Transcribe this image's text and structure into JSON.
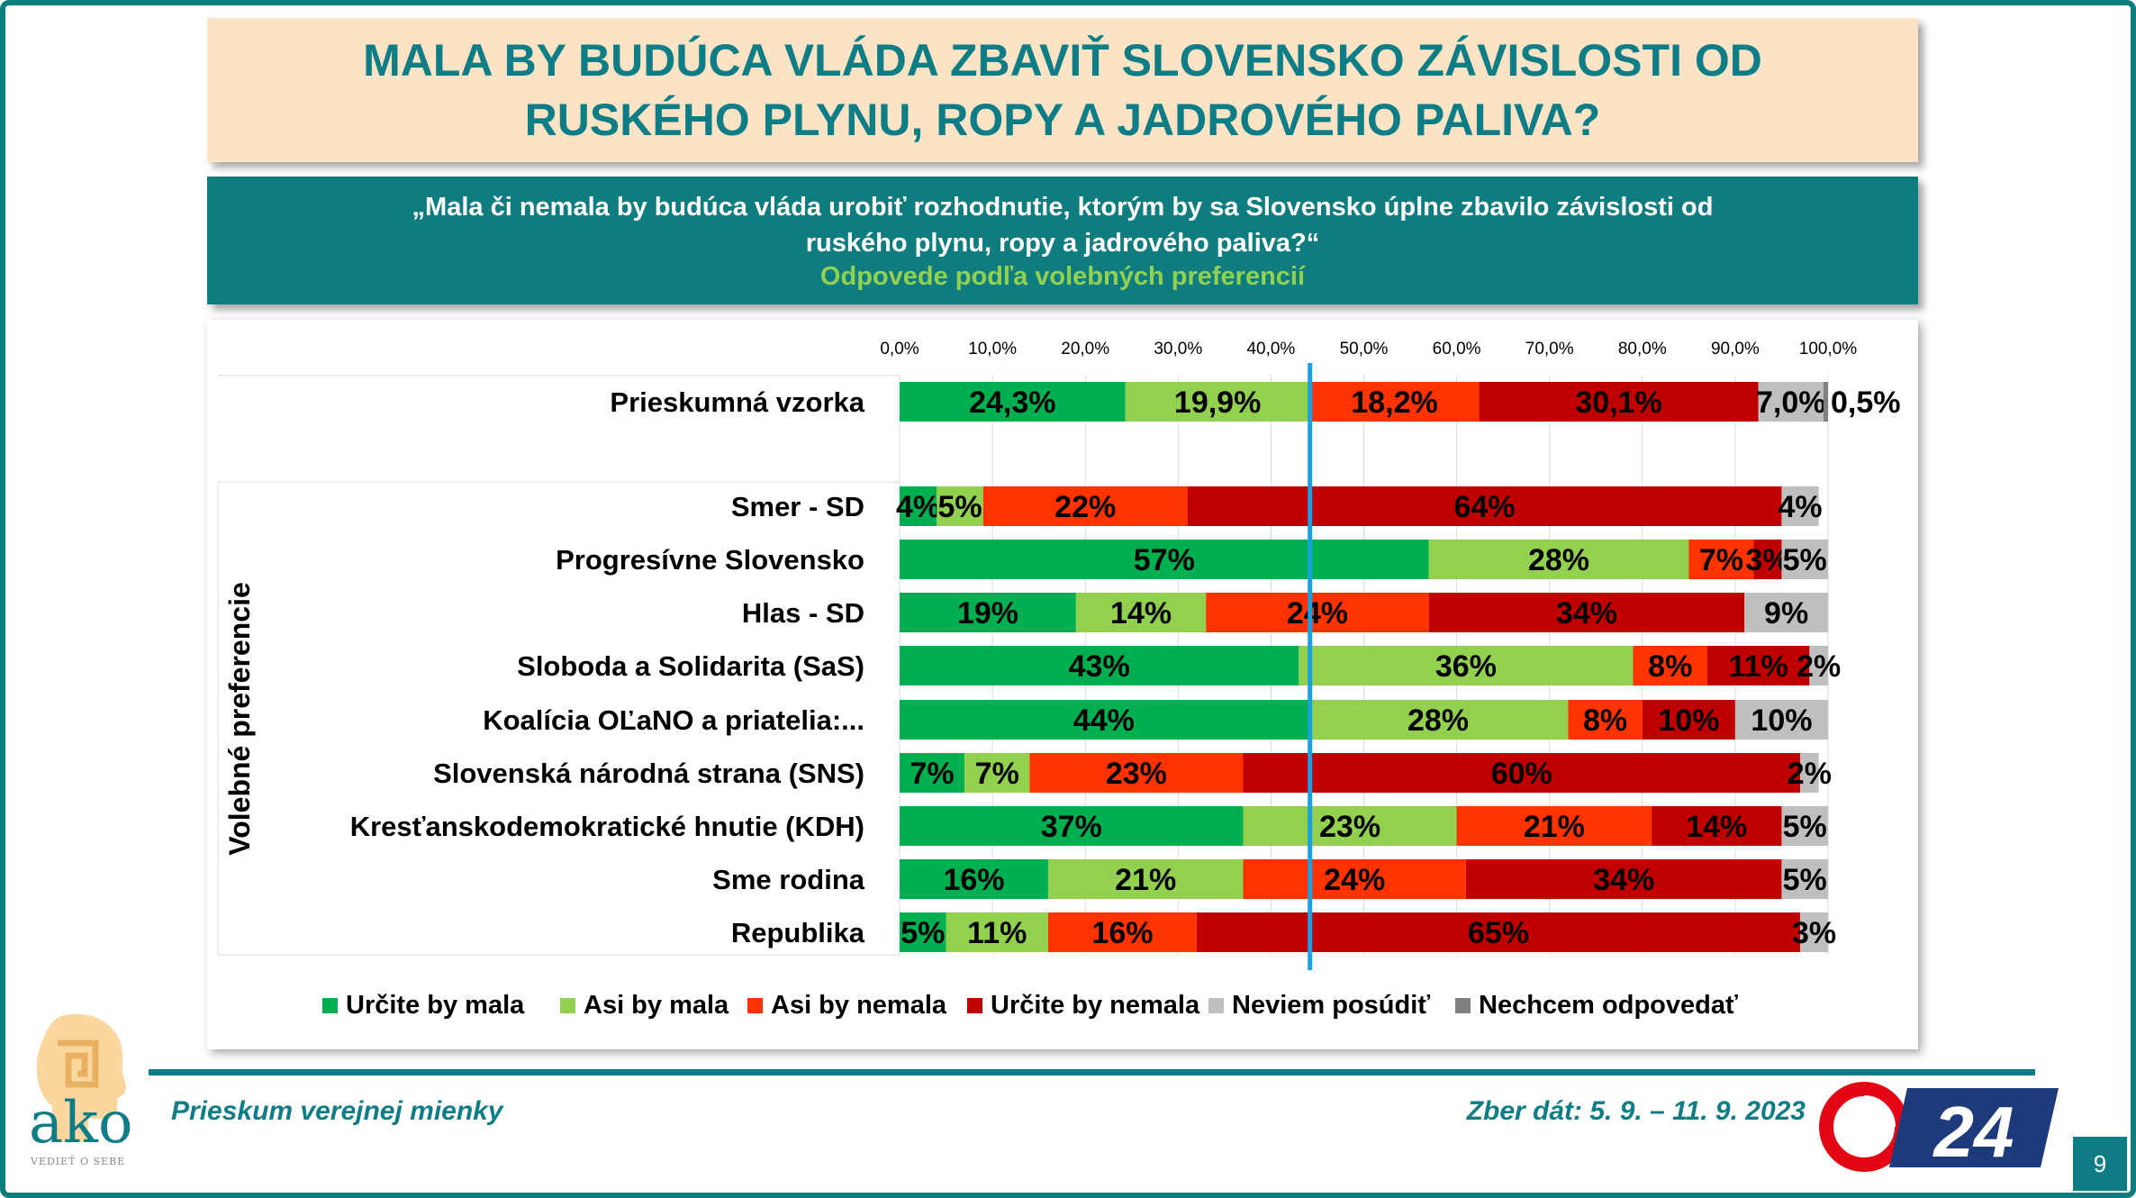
{
  "title": "MALA BY BUDÚCA VLÁDA ZBAVIŤ SLOVENSKO ZÁVISLOSTI OD RUSKÉHO PLYNU, ROPY A JADROVÉHO PALIVA?",
  "question": "„Mala či nemala by budúca vláda urobiť rozhodnutie, ktorým by sa Slovensko úplne zbavilo závislosti od ruského plynu, ropy a jadrového paliva?“",
  "question_note": "Odpovede podľa volebných preferencií",
  "footer": {
    "left": "Prieskum verejnej mienky",
    "right": "Zber dát: 5. 9. – 11. 9. 2023",
    "page_number": "9"
  },
  "logo": {
    "text": "ako",
    "tagline": "VEDIEŤ O SEBE",
    "tv": "24"
  },
  "colors": {
    "brand_teal": "#0f7d86",
    "series": [
      "#00b050",
      "#92d050",
      "#ff3300",
      "#c00000",
      "#bfbfbf",
      "#808080"
    ],
    "reference_line": "#1ba1e2"
  },
  "chart_data": {
    "type": "bar",
    "orientation": "horizontal",
    "stacked": true,
    "xlim": [
      0,
      100
    ],
    "x_ticks": [
      "0,0%",
      "10,0%",
      "20,0%",
      "30,0%",
      "40,0%",
      "50,0%",
      "60,0%",
      "70,0%",
      "80,0%",
      "90,0%",
      "100,0%"
    ],
    "y_group_label": "Volebné preferencie",
    "categories": [
      "Prieskumná vzorka",
      "Smer - SD",
      "Progresívne Slovensko",
      "Hlas - SD",
      "Sloboda a Solidarita (SaS)",
      "Koalícia OĽaNO a priatelia:...",
      "Slovenská národná strana (SNS)",
      "Kresťanskodemokratické hnutie (KDH)",
      "Sme rodina",
      "Republika"
    ],
    "series": [
      {
        "name": "Určite by mala",
        "values": [
          24.3,
          4,
          57,
          19,
          43,
          44,
          7,
          37,
          16,
          5
        ],
        "labels": [
          "24,3%",
          "4%",
          "57%",
          "19%",
          "43%",
          "44%",
          "7%",
          "37%",
          "16%",
          "5%"
        ]
      },
      {
        "name": "Asi by mala",
        "values": [
          19.9,
          5,
          28,
          14,
          36,
          28,
          7,
          23,
          21,
          11
        ],
        "labels": [
          "19,9%",
          "5%",
          "28%",
          "14%",
          "36%",
          "28%",
          "7%",
          "23%",
          "21%",
          "11%"
        ]
      },
      {
        "name": "Asi by nemala",
        "values": [
          18.2,
          22,
          7,
          24,
          8,
          8,
          23,
          21,
          24,
          16
        ],
        "labels": [
          "18,2%",
          "22%",
          "7%",
          "24%",
          "8%",
          "8%",
          "23%",
          "21%",
          "24%",
          "16%"
        ]
      },
      {
        "name": "Určite by nemala",
        "values": [
          30.1,
          64,
          3,
          34,
          11,
          10,
          60,
          14,
          34,
          65
        ],
        "labels": [
          "30,1%",
          "64%",
          "3%",
          "34%",
          "11%",
          "10%",
          "60%",
          "14%",
          "34%",
          "65%"
        ]
      },
      {
        "name": "Neviem posúdiť",
        "values": [
          7.0,
          4,
          5,
          9,
          2,
          10,
          2,
          5,
          5,
          3
        ],
        "labels": [
          "7,0%",
          "4%",
          "5%",
          "9%",
          "2%",
          "10%",
          "2%",
          "5%",
          "5%",
          "3%"
        ]
      },
      {
        "name": "Nechcem odpovedať",
        "values": [
          0.5,
          0,
          0,
          0,
          0,
          0,
          0,
          0,
          0,
          0
        ],
        "labels": [
          "0,5%",
          "",
          "",
          "",
          "",
          "",
          "",
          "",
          "",
          ""
        ]
      }
    ],
    "reference_line_x": 44.2,
    "legend": "bottom"
  }
}
